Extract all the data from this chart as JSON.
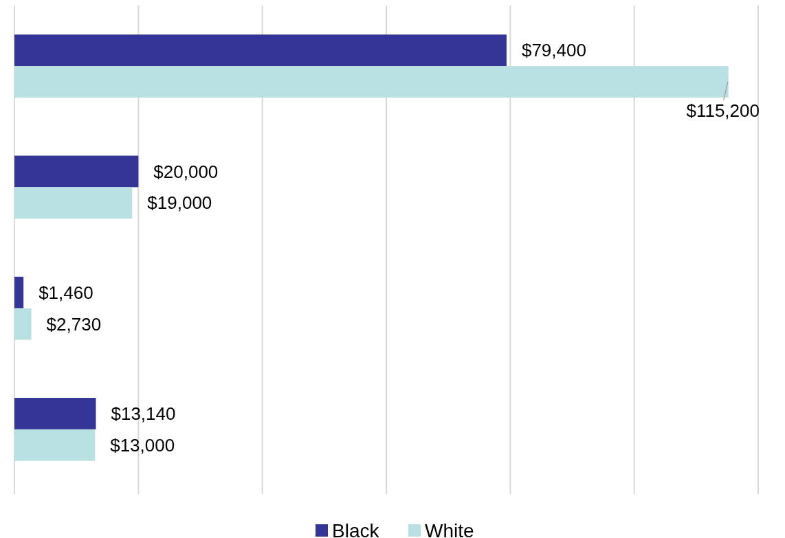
{
  "chart_data": {
    "type": "bar",
    "orientation": "horizontal",
    "categories": [
      null,
      null,
      null,
      null
    ],
    "series": [
      {
        "name": "Black",
        "color": "#353598",
        "values": [
          79400,
          20000,
          1460,
          13140
        ],
        "value_labels": [
          "$79,400",
          "$20,000",
          "$1,460",
          "$13,140"
        ]
      },
      {
        "name": "White",
        "color": "#b9e0e2",
        "values": [
          115200,
          19000,
          2730,
          13000
        ],
        "value_labels": [
          "$115,200",
          "$19,000",
          "$2,730",
          "$13,000"
        ]
      }
    ],
    "xlim": [
      0,
      120000
    ],
    "xticks": [
      {
        "value": 0,
        "label": null
      },
      {
        "value": 20000,
        "label": null
      },
      {
        "value": 40000,
        "label": null
      },
      {
        "value": 60000,
        "label": null
      },
      {
        "value": 80000,
        "label": null
      },
      {
        "value": 100000,
        "label": null
      },
      {
        "value": 120000,
        "label": null
      }
    ],
    "grid": "x",
    "legend": "bottom"
  }
}
